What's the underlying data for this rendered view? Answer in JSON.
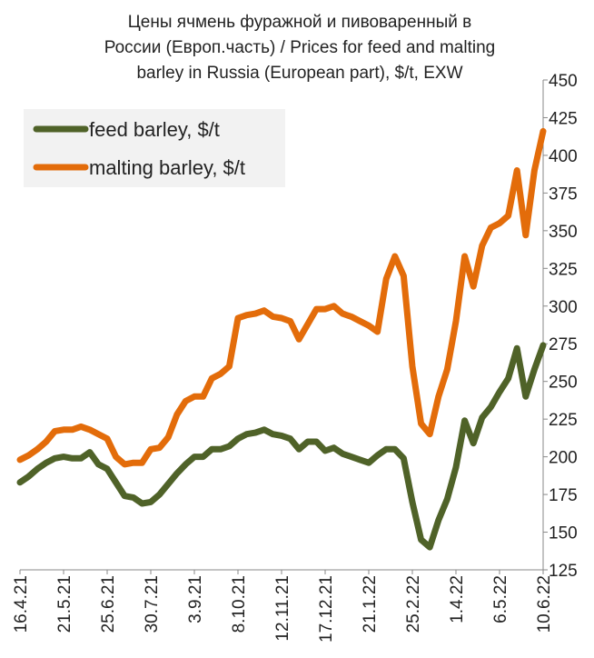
{
  "chart_data": {
    "type": "line",
    "title": [
      "Цены ячмень фуражной и пивоваренный в",
      "России (Европ.часть) / Prices for feed and malting",
      "barley in Russia (European part), $/t, EXW"
    ],
    "categories": [
      "16.4.21",
      null,
      null,
      null,
      null,
      "21.5.21",
      null,
      null,
      null,
      null,
      "25.6.21",
      null,
      null,
      null,
      null,
      "30.7.21",
      null,
      null,
      null,
      null,
      "3.9.21",
      null,
      null,
      null,
      null,
      "8.10.21",
      null,
      null,
      null,
      null,
      "12.11.21",
      null,
      null,
      null,
      null,
      "17.12.21",
      null,
      null,
      null,
      null,
      "21.1.22",
      null,
      null,
      null,
      null,
      "25.2.22",
      null,
      null,
      null,
      null,
      "1.4.22",
      null,
      null,
      null,
      null,
      "6.5.22",
      null,
      null,
      null,
      null,
      "10.6.22"
    ],
    "series": [
      {
        "name": "feed barley, $/t",
        "color": "#4f6228",
        "values": [
          183,
          187,
          192,
          196,
          199,
          200,
          199,
          199,
          203,
          195,
          192,
          183,
          174,
          173,
          169,
          170,
          175,
          182,
          189,
          195,
          200,
          200,
          205,
          205,
          207,
          212,
          215,
          216,
          218,
          215,
          214,
          212,
          205,
          210,
          210,
          204,
          206,
          202,
          200,
          198,
          196,
          201,
          205,
          205,
          199,
          170,
          145,
          140,
          158,
          172,
          193,
          224,
          209,
          226,
          233,
          243,
          252,
          272,
          240,
          258,
          274
        ]
      },
      {
        "name": "malting barley, $/t",
        "color": "#e36c0a",
        "values": [
          198,
          201,
          205,
          210,
          217,
          218,
          218,
          220,
          218,
          215,
          212,
          200,
          195,
          196,
          196,
          205,
          206,
          213,
          228,
          237,
          240,
          240,
          252,
          255,
          260,
          292,
          294,
          295,
          297,
          293,
          292,
          290,
          278,
          288,
          298,
          298,
          300,
          295,
          293,
          290,
          287,
          283,
          318,
          333,
          320,
          260,
          222,
          215,
          240,
          258,
          290,
          333,
          313,
          340,
          352,
          355,
          360,
          390,
          347,
          390,
          416
        ]
      }
    ],
    "ylim": [
      125,
      450
    ],
    "yticks": [
      125,
      150,
      175,
      200,
      225,
      250,
      275,
      300,
      325,
      350,
      375,
      400,
      425,
      450
    ],
    "legend": "upper left",
    "grid": false
  }
}
